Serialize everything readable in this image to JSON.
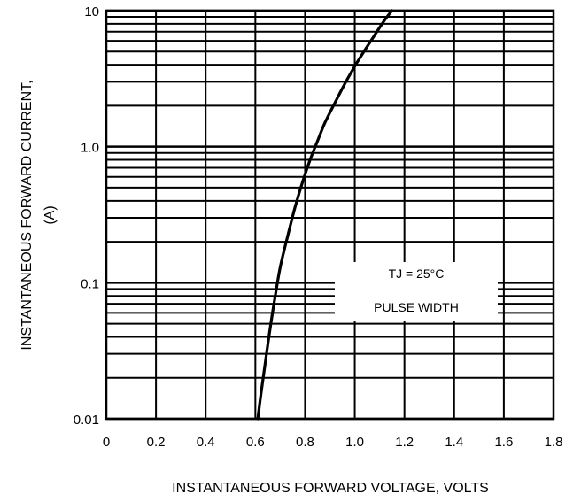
{
  "chart_data": {
    "type": "line",
    "title": "",
    "xlabel": "INSTANTANEOUS FORWARD VOLTAGE, VOLTS",
    "ylabel_line1": "INSTANTANEOUS FORWARD CURRENT,",
    "ylabel_line2": "(A)",
    "xlim": [
      0,
      1.8
    ],
    "ylim": [
      0.01,
      10
    ],
    "y_scale": "log",
    "grid": true,
    "x_ticks": [
      0,
      0.2,
      0.4,
      0.6,
      0.8,
      1.0,
      1.2,
      1.4,
      1.6,
      1.8
    ],
    "x_tick_labels": [
      "0",
      "0.2",
      "0.4",
      "0.6",
      "0.8",
      "1.0",
      "1.2",
      "1.4",
      "1.6",
      "1.8"
    ],
    "y_ticks": [
      0.01,
      0.1,
      1.0,
      10
    ],
    "y_tick_labels": [
      "0.01",
      "0.1",
      "1.0",
      "10"
    ],
    "annotations": {
      "line1": "TJ = 25°C",
      "line2": "PULSE WIDTH"
    },
    "series": [
      {
        "x": [
          0.61,
          0.62,
          0.64,
          0.66,
          0.68,
          0.7,
          0.73,
          0.76,
          0.79,
          0.82,
          0.85,
          0.88,
          0.92,
          0.96,
          1.0,
          1.04,
          1.08,
          1.12,
          1.15
        ],
        "y": [
          0.01,
          0.014,
          0.026,
          0.047,
          0.08,
          0.13,
          0.22,
          0.36,
          0.55,
          0.8,
          1.1,
          1.5,
          2.1,
          2.9,
          3.9,
          5.1,
          6.6,
          8.5,
          10
        ]
      }
    ]
  }
}
